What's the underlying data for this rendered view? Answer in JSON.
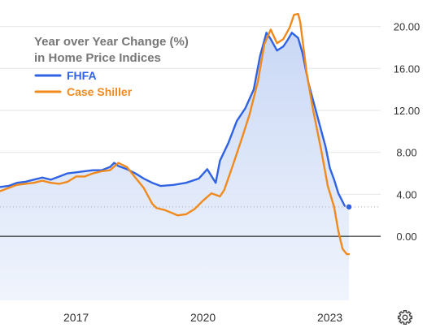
{
  "colors": {
    "fhfa": "#2f63e3",
    "case_shiller": "#f08a1d",
    "area_top": "#c7d6f5",
    "area_bottom": "#eef3fc",
    "zero_line": "#000000",
    "grid": "#e6e6e6",
    "dotted_ref": "#aaaaaa"
  },
  "settings_icon": "gear-icon",
  "chart_data": {
    "type": "line",
    "title_lines": [
      "Year over Year Change (%)",
      "in Home Price Indices"
    ],
    "legend": {
      "placement": "top-left",
      "entries": [
        "FHFA",
        "Case Shiller"
      ]
    },
    "y_axis": {
      "position": "right",
      "min": -6.1,
      "max": 21.9,
      "ticks": [
        "20.00",
        "16.00",
        "12.00",
        "8.00",
        "4.00",
        "0.00"
      ]
    },
    "x_axis": {
      "min": 2015.2,
      "max": 2024.2,
      "ticks": [
        "2017",
        "2020",
        "2023"
      ]
    },
    "zero_line": true,
    "series": [
      {
        "name": "FHFA",
        "area_fill": true,
        "end_marker": true,
        "points": [
          [
            2015.2,
            4.7
          ],
          [
            2015.4,
            4.8
          ],
          [
            2015.6,
            5.1
          ],
          [
            2015.8,
            5.2
          ],
          [
            2016.0,
            5.4
          ],
          [
            2016.2,
            5.6
          ],
          [
            2016.4,
            5.4
          ],
          [
            2016.6,
            5.7
          ],
          [
            2016.8,
            6.0
          ],
          [
            2017.0,
            6.1
          ],
          [
            2017.2,
            6.2
          ],
          [
            2017.4,
            6.3
          ],
          [
            2017.6,
            6.3
          ],
          [
            2017.8,
            6.6
          ],
          [
            2017.9,
            7.0
          ],
          [
            2018.0,
            6.7
          ],
          [
            2018.2,
            6.4
          ],
          [
            2018.4,
            6.0
          ],
          [
            2018.6,
            5.5
          ],
          [
            2018.8,
            5.1
          ],
          [
            2019.0,
            4.8
          ],
          [
            2019.3,
            4.9
          ],
          [
            2019.6,
            5.1
          ],
          [
            2019.9,
            5.5
          ],
          [
            2020.1,
            6.4
          ],
          [
            2020.3,
            5.1
          ],
          [
            2020.4,
            7.2
          ],
          [
            2020.6,
            8.9
          ],
          [
            2020.8,
            11.0
          ],
          [
            2021.0,
            12.2
          ],
          [
            2021.2,
            14.0
          ],
          [
            2021.35,
            17.2
          ],
          [
            2021.5,
            19.4
          ],
          [
            2021.6,
            18.8
          ],
          [
            2021.75,
            17.7
          ],
          [
            2021.9,
            18.1
          ],
          [
            2022.0,
            18.7
          ],
          [
            2022.1,
            19.4
          ],
          [
            2022.25,
            18.9
          ],
          [
            2022.35,
            17.5
          ],
          [
            2022.5,
            14.5
          ],
          [
            2022.7,
            11.5
          ],
          [
            2022.9,
            8.5
          ],
          [
            2023.0,
            6.5
          ],
          [
            2023.1,
            5.4
          ],
          [
            2023.2,
            4.1
          ],
          [
            2023.3,
            3.3
          ],
          [
            2023.35,
            2.9
          ],
          [
            2023.45,
            2.8
          ]
        ]
      },
      {
        "name": "Case Shiller",
        "area_fill": false,
        "end_marker": false,
        "points": [
          [
            2015.2,
            4.3
          ],
          [
            2015.4,
            4.6
          ],
          [
            2015.6,
            4.9
          ],
          [
            2015.8,
            5.0
          ],
          [
            2016.0,
            5.1
          ],
          [
            2016.2,
            5.3
          ],
          [
            2016.4,
            5.1
          ],
          [
            2016.6,
            5.0
          ],
          [
            2016.8,
            5.2
          ],
          [
            2017.0,
            5.7
          ],
          [
            2017.2,
            5.7
          ],
          [
            2017.4,
            6.0
          ],
          [
            2017.6,
            6.2
          ],
          [
            2017.8,
            6.3
          ],
          [
            2018.0,
            7.0
          ],
          [
            2018.2,
            6.6
          ],
          [
            2018.4,
            5.6
          ],
          [
            2018.6,
            4.6
          ],
          [
            2018.8,
            3.1
          ],
          [
            2018.9,
            2.7
          ],
          [
            2019.1,
            2.5
          ],
          [
            2019.4,
            2.0
          ],
          [
            2019.6,
            2.1
          ],
          [
            2019.8,
            2.6
          ],
          [
            2020.0,
            3.4
          ],
          [
            2020.2,
            4.1
          ],
          [
            2020.4,
            3.8
          ],
          [
            2020.5,
            4.4
          ],
          [
            2020.7,
            6.7
          ],
          [
            2020.9,
            9.1
          ],
          [
            2021.1,
            11.6
          ],
          [
            2021.3,
            14.8
          ],
          [
            2021.45,
            18.3
          ],
          [
            2021.6,
            19.7
          ],
          [
            2021.75,
            18.4
          ],
          [
            2021.9,
            18.8
          ],
          [
            2022.05,
            19.9
          ],
          [
            2022.15,
            21.1
          ],
          [
            2022.25,
            21.2
          ],
          [
            2022.3,
            20.4
          ],
          [
            2022.45,
            15.6
          ],
          [
            2022.6,
            12.1
          ],
          [
            2022.8,
            8.1
          ],
          [
            2022.95,
            4.8
          ],
          [
            2023.1,
            2.8
          ],
          [
            2023.2,
            0.5
          ],
          [
            2023.3,
            -1.2
          ],
          [
            2023.4,
            -1.7
          ],
          [
            2023.45,
            -1.7
          ]
        ]
      }
    ],
    "reference_line": {
      "value": 2.8,
      "style": "dotted"
    }
  }
}
